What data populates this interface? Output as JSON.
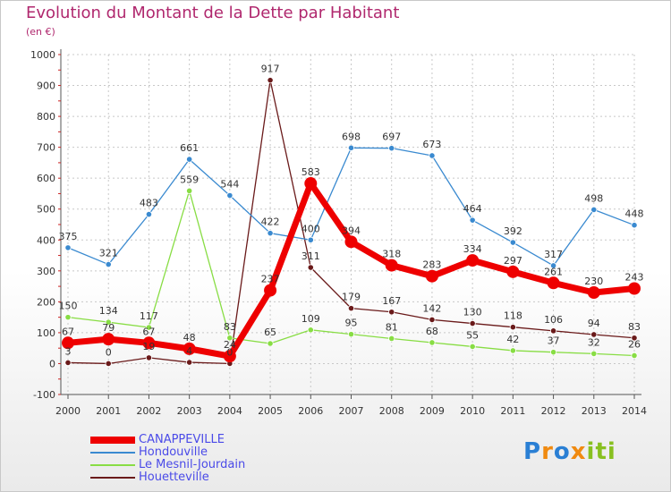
{
  "chart_data": {
    "type": "line",
    "title": "Evolution du Montant de la Dette par Habitant",
    "subtitle": "(en €)",
    "categories": [
      "2000",
      "2001",
      "2002",
      "2003",
      "2004",
      "2005",
      "2006",
      "2007",
      "2008",
      "2009",
      "2010",
      "2011",
      "2012",
      "2013",
      "2014"
    ],
    "ylim": [
      -100,
      1000
    ],
    "yticks": [
      -100,
      0,
      100,
      200,
      300,
      400,
      500,
      600,
      700,
      800,
      900,
      1000
    ],
    "grid": true,
    "legend_position": "bottom-left",
    "series": [
      {
        "name": "CANAPPEVILLE",
        "color": "#ee0000",
        "values": [
          67,
          79,
          67,
          48,
          24,
          237,
          583,
          394,
          318,
          283,
          334,
          297,
          261,
          230,
          243
        ],
        "labels": [
          "67",
          "79",
          "67",
          "48",
          "24",
          "237",
          "583",
          "394",
          "318",
          "283",
          "334",
          "297",
          "261",
          "230",
          "243"
        ]
      },
      {
        "name": "Hondouville",
        "color": "#3a8ad0",
        "values": [
          375,
          321,
          483,
          661,
          544,
          422,
          400,
          698,
          697,
          673,
          464,
          392,
          317,
          498,
          448
        ],
        "labels": [
          "375",
          "321",
          "483",
          "661",
          "544",
          "422",
          "400",
          "698",
          "697",
          "673",
          "464",
          "392",
          "317",
          "498",
          "448"
        ]
      },
      {
        "name": "Le Mesnil-Jourdain",
        "color": "#88dd44",
        "values": [
          150,
          134,
          117,
          559,
          83,
          65,
          109,
          95,
          81,
          68,
          55,
          42,
          37,
          32,
          26
        ],
        "labels": [
          "150",
          "134",
          "117",
          "559",
          "83",
          "65",
          "109",
          "95",
          "81",
          "68",
          "55",
          "42",
          "37",
          "32",
          "26"
        ]
      },
      {
        "name": "Houetteville",
        "color": "#6a1a1a",
        "values": [
          3,
          0,
          19,
          4,
          0,
          917,
          311,
          179,
          167,
          142,
          130,
          118,
          106,
          94,
          83
        ],
        "labels": [
          "3",
          "0",
          "19",
          "4",
          "0",
          "917",
          "311",
          "179",
          "167",
          "142",
          "130",
          "118",
          "106",
          "94",
          "83"
        ]
      }
    ]
  },
  "brand": {
    "letters": [
      "P",
      "r",
      "o",
      "x",
      "i",
      "t",
      "i"
    ],
    "colors": [
      "#2a7fd4",
      "#f08a10",
      "#2a7fd4",
      "#f08a10",
      "#88c020",
      "#88c020",
      "#88c020"
    ]
  }
}
